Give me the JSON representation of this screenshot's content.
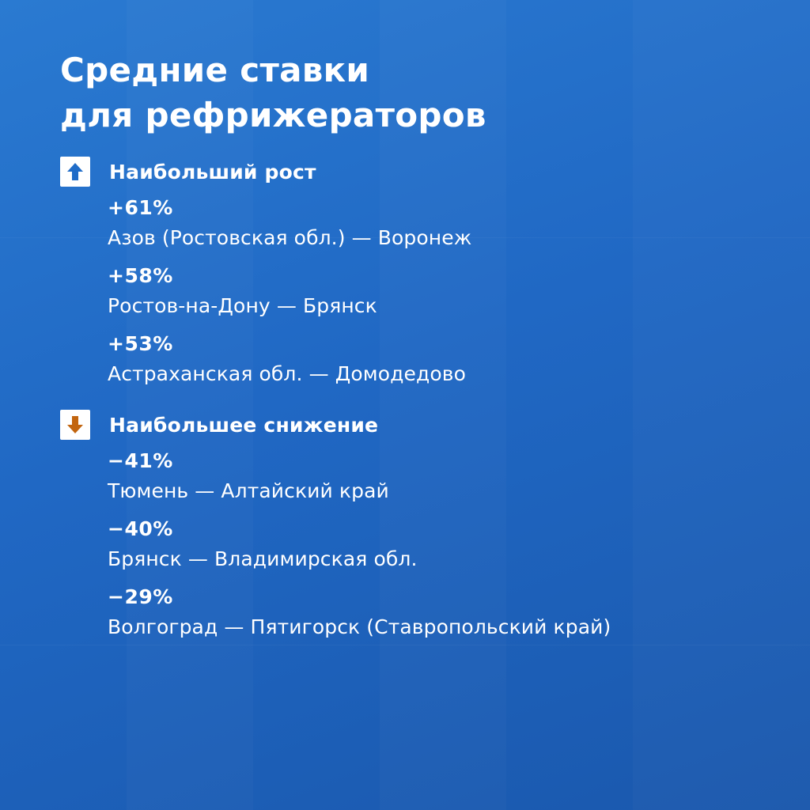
{
  "title": {
    "line1": "Средние ставки",
    "line2": "для рефрижераторов"
  },
  "colors": {
    "background": "#2068c4",
    "text": "#ffffff",
    "up_icon": "#1f6cc8",
    "down_icon": "#c2650f"
  },
  "growth": {
    "icon": "arrow-up-icon",
    "label": "Наибольший рост",
    "items": [
      {
        "pct": "+61%",
        "route": "Азов (Ростовская обл.) — Воронеж"
      },
      {
        "pct": "+58%",
        "route": "Ростов-на-Дону — Брянск"
      },
      {
        "pct": "+53%",
        "route": "Астраханская обл. — Домодедово"
      }
    ]
  },
  "decline": {
    "icon": "arrow-down-icon",
    "label": "Наибольшее снижение",
    "items": [
      {
        "pct": "−41%",
        "route": "Тюмень — Алтайский край"
      },
      {
        "pct": "−40%",
        "route": "Брянск — Владимирская обл."
      },
      {
        "pct": "−29%",
        "route": "Волгоград — Пятигорск (Ставропольский край)"
      }
    ]
  }
}
